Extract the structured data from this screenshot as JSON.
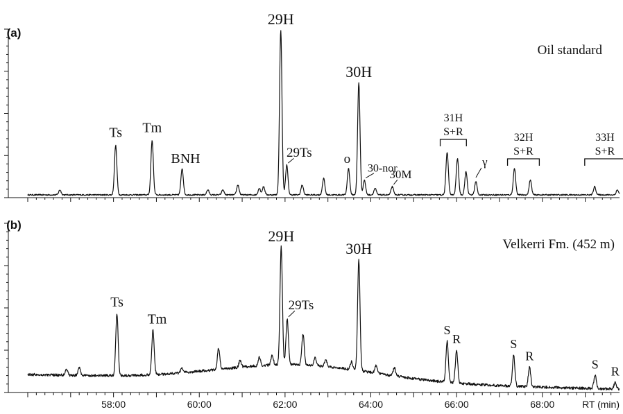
{
  "chart_data": {
    "type": "line",
    "xlabel": "RT (min)",
    "x_ticks": [
      "58:00",
      "60:00",
      "62:00",
      "64:00",
      "66:00",
      "68:00"
    ],
    "xlim": [
      56.0,
      69.8
    ],
    "panels": [
      {
        "id": "a",
        "label": "(a)",
        "annotation": "Oil standard",
        "noise": 0.004,
        "peaks": [
          {
            "rt": 56.75,
            "height": 0.03
          },
          {
            "rt": 58.05,
            "height": 0.3,
            "label": "Ts"
          },
          {
            "rt": 58.9,
            "height": 0.33,
            "label": "Tm"
          },
          {
            "rt": 59.6,
            "height": 0.16,
            "label": "BNH"
          },
          {
            "rt": 60.2,
            "height": 0.03
          },
          {
            "rt": 60.55,
            "height": 0.03
          },
          {
            "rt": 60.9,
            "height": 0.06
          },
          {
            "rt": 61.4,
            "height": 0.04
          },
          {
            "rt": 61.5,
            "height": 0.05
          },
          {
            "rt": 61.9,
            "height": 1.0,
            "label": "29H"
          },
          {
            "rt": 62.04,
            "height": 0.18,
            "label": "29Ts"
          },
          {
            "rt": 62.4,
            "height": 0.06
          },
          {
            "rt": 62.9,
            "height": 0.1
          },
          {
            "rt": 63.48,
            "height": 0.16,
            "label": "o"
          },
          {
            "rt": 63.72,
            "height": 0.68,
            "label": "30H"
          },
          {
            "rt": 63.85,
            "height": 0.09,
            "label": "30-nor"
          },
          {
            "rt": 64.1,
            "height": 0.04
          },
          {
            "rt": 64.5,
            "height": 0.05,
            "label": "30M"
          },
          {
            "rt": 65.78,
            "height": 0.26
          },
          {
            "rt": 66.02,
            "height": 0.22
          },
          {
            "rt": 66.22,
            "height": 0.14
          },
          {
            "rt": 66.45,
            "height": 0.08
          },
          {
            "rt": 67.35,
            "height": 0.16
          },
          {
            "rt": 67.72,
            "height": 0.09
          },
          {
            "rt": 69.22,
            "height": 0.05
          },
          {
            "rt": 69.75,
            "height": 0.03
          }
        ],
        "groups": [
          {
            "label1": "31H",
            "label2": "S+R",
            "from": 65.78,
            "to": 66.1
          },
          {
            "label1": "32H",
            "label2": "S+R",
            "from": 67.35,
            "to": 67.8
          },
          {
            "label1": "33H",
            "label2": "S+R",
            "from": 69.15,
            "to": 69.8
          }
        ],
        "extra_labels": [
          {
            "text": "γ",
            "rt": 66.45
          }
        ]
      },
      {
        "id": "b",
        "label": "(b)",
        "annotation": "Velkerri Fm. (452 m)",
        "noise": 0.008,
        "baseline_start": 0.11,
        "baseline_end": 0.02,
        "hump": 0.1,
        "peaks": [
          {
            "rt": 56.9,
            "height": 0.04
          },
          {
            "rt": 57.2,
            "height": 0.05
          },
          {
            "rt": 58.08,
            "height": 0.38,
            "label": "Ts"
          },
          {
            "rt": 58.92,
            "height": 0.27,
            "label": "Tm"
          },
          {
            "rt": 59.6,
            "height": 0.03
          },
          {
            "rt": 60.45,
            "height": 0.13
          },
          {
            "rt": 60.95,
            "height": 0.04
          },
          {
            "rt": 61.4,
            "height": 0.05
          },
          {
            "rt": 61.7,
            "height": 0.06
          },
          {
            "rt": 61.91,
            "height": 0.72,
            "label": "29H"
          },
          {
            "rt": 62.05,
            "height": 0.28,
            "label": "29Ts"
          },
          {
            "rt": 62.42,
            "height": 0.19
          },
          {
            "rt": 62.7,
            "height": 0.05
          },
          {
            "rt": 62.95,
            "height": 0.04
          },
          {
            "rt": 63.55,
            "height": 0.05
          },
          {
            "rt": 63.72,
            "height": 0.68,
            "label": "30H"
          },
          {
            "rt": 64.12,
            "height": 0.05
          },
          {
            "rt": 64.55,
            "height": 0.05
          },
          {
            "rt": 65.78,
            "height": 0.25,
            "label": "S"
          },
          {
            "rt": 66.0,
            "height": 0.2,
            "label": "R"
          },
          {
            "rt": 67.33,
            "height": 0.19,
            "label": "S"
          },
          {
            "rt": 67.7,
            "height": 0.12,
            "label": "R"
          },
          {
            "rt": 69.23,
            "height": 0.08,
            "label": "S"
          },
          {
            "rt": 69.7,
            "height": 0.04,
            "label": "R"
          }
        ]
      }
    ]
  }
}
